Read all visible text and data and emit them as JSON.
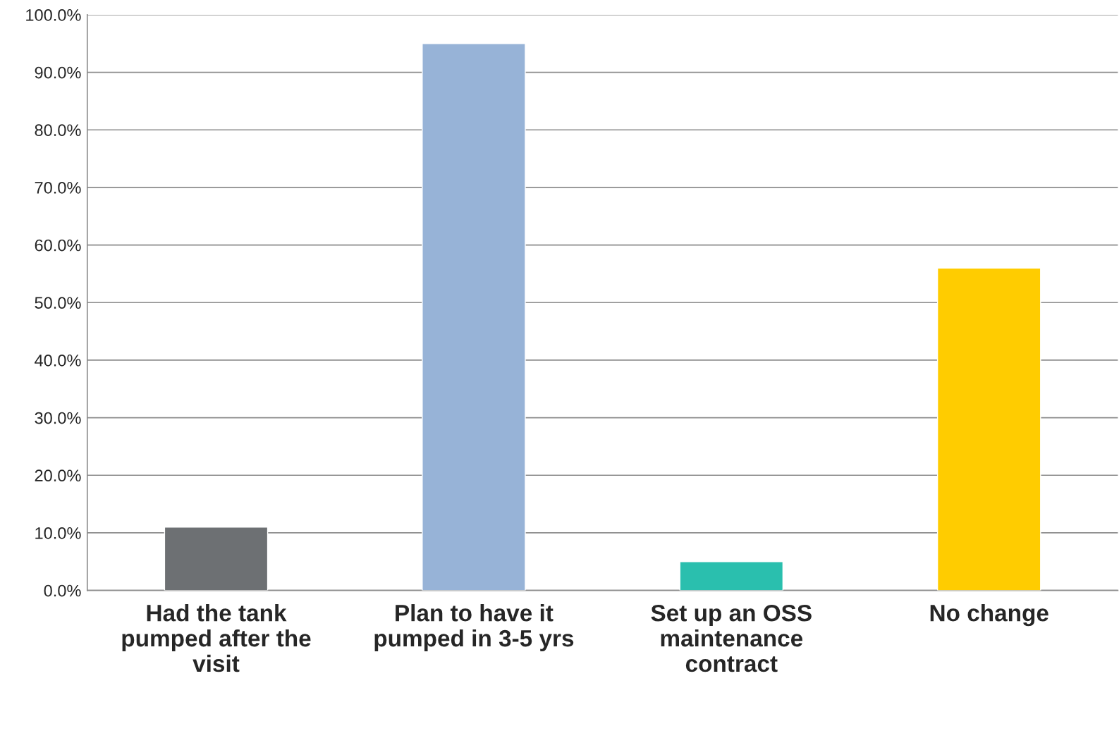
{
  "chart_data": {
    "type": "bar",
    "categories": [
      "Had the tank pumped after the visit",
      "Plan to have it pumped in 3-5 yrs",
      "Set up an OSS maintenance contract",
      "No change"
    ],
    "values": [
      11.0,
      95.0,
      5.0,
      56.0
    ],
    "colors": [
      "#6d7073",
      "#97b3d7",
      "#2abfae",
      "#ffcc00"
    ],
    "ylim": [
      0,
      100
    ],
    "yticks": [
      {
        "value": 0,
        "label": "0.0%"
      },
      {
        "value": 10,
        "label": "10.0%"
      },
      {
        "value": 20,
        "label": "20.0%"
      },
      {
        "value": 30,
        "label": "30.0%"
      },
      {
        "value": 40,
        "label": "40.0%"
      },
      {
        "value": 50,
        "label": "50.0%"
      },
      {
        "value": 60,
        "label": "60.0%"
      },
      {
        "value": 70,
        "label": "70.0%"
      },
      {
        "value": 80,
        "label": "80.0%"
      },
      {
        "value": 90,
        "label": "90.0%"
      },
      {
        "value": 100,
        "label": "100.0%"
      }
    ],
    "grid": "y",
    "legend": false
  }
}
